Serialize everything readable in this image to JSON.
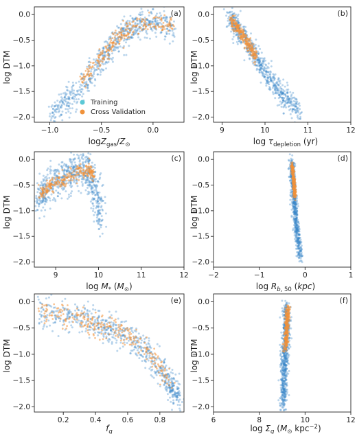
{
  "colors": {
    "training": "#3a86c8",
    "cross_validation": "#f0923a",
    "axis": "#222222",
    "background": "#ffffff"
  },
  "chart_data": [
    {
      "type": "scatter",
      "tag": "(a)",
      "xlabel": "logZ_gas/Z_⊙",
      "ylabel": "log DTM",
      "xlim": [
        -1.15,
        0.3
      ],
      "ylim": [
        -2.1,
        0.15
      ],
      "xticks": [
        -1.0,
        -0.5,
        0.0
      ],
      "xtick_labels": [
        "−1.0",
        "−0.5",
        "0.0"
      ],
      "yticks": [
        -2.0,
        -1.5,
        -1.0,
        -0.5,
        0.0
      ],
      "ytick_labels": [
        "−2.0",
        "−1.5",
        "−1.0",
        "−0.5",
        "0.0"
      ],
      "legend": {
        "placement": "lower-right",
        "entries": [
          "Training",
          "Cross Validation"
        ]
      },
      "series": [
        {
          "name": "Training",
          "trend": [
            [
              -0.98,
              -1.95
            ],
            [
              -0.8,
              -1.6
            ],
            [
              -0.6,
              -1.2
            ],
            [
              -0.45,
              -0.75
            ],
            [
              -0.3,
              -0.4
            ],
            [
              -0.15,
              -0.2
            ],
            [
              0.0,
              -0.15
            ],
            [
              0.2,
              -0.2
            ]
          ],
          "spread": 0.25
        },
        {
          "name": "Cross Validation",
          "trend": [
            [
              -0.7,
              -1.3
            ],
            [
              -0.5,
              -0.85
            ],
            [
              -0.35,
              -0.45
            ],
            [
              -0.2,
              -0.25
            ],
            [
              0.0,
              -0.18
            ],
            [
              0.2,
              -0.22
            ]
          ],
          "spread": 0.15
        }
      ]
    },
    {
      "type": "scatter",
      "tag": "(b)",
      "xlabel": "log τ_depletion (yr)",
      "ylabel": "log DTM",
      "xlim": [
        8.8,
        12.0
      ],
      "ylim": [
        -2.1,
        0.15
      ],
      "xticks": [
        9,
        10,
        11,
        12
      ],
      "xtick_labels": [
        "9",
        "10",
        "11",
        "12"
      ],
      "yticks": [
        -2.0,
        -1.5,
        -1.0,
        -0.5,
        0.0
      ],
      "ytick_labels": [
        "−2.0",
        "−1.5",
        "−1.0",
        "−0.5",
        "0.0"
      ],
      "series": [
        {
          "name": "Training",
          "trend": [
            [
              9.15,
              -0.05
            ],
            [
              9.4,
              -0.3
            ],
            [
              9.7,
              -0.7
            ],
            [
              10.0,
              -1.1
            ],
            [
              10.4,
              -1.55
            ],
            [
              10.8,
              -1.9
            ]
          ],
          "spread": 0.2
        },
        {
          "name": "Cross Validation",
          "trend": [
            [
              9.2,
              -0.1
            ],
            [
              9.4,
              -0.3
            ],
            [
              9.6,
              -0.55
            ],
            [
              9.8,
              -0.85
            ]
          ],
          "spread": 0.12
        }
      ]
    },
    {
      "type": "scatter",
      "tag": "(c)",
      "xlabel": "log M_* (M_⊙)",
      "ylabel": "log DTM",
      "xlim": [
        8.5,
        12.0
      ],
      "ylim": [
        -2.1,
        0.15
      ],
      "xticks": [
        9,
        10,
        11,
        12
      ],
      "xtick_labels": [
        "9",
        "10",
        "11",
        "12"
      ],
      "yticks": [
        -2.0,
        -1.5,
        -1.0,
        -0.5,
        0.0
      ],
      "ytick_labels": [
        "−2.0",
        "−1.5",
        "−1.0",
        "−0.5",
        "0.0"
      ],
      "series": [
        {
          "name": "Training",
          "trend": [
            [
              8.6,
              -0.8
            ],
            [
              8.8,
              -0.55
            ],
            [
              9.1,
              -0.4
            ],
            [
              9.4,
              -0.25
            ],
            [
              9.7,
              -0.15
            ],
            [
              9.95,
              -0.6
            ],
            [
              10.05,
              -1.3
            ]
          ],
          "spread": 0.3
        },
        {
          "name": "Cross Validation",
          "trend": [
            [
              8.6,
              -0.7
            ],
            [
              8.9,
              -0.5
            ],
            [
              9.2,
              -0.38
            ],
            [
              9.5,
              -0.25
            ],
            [
              9.75,
              -0.2
            ],
            [
              9.9,
              -0.3
            ]
          ],
          "spread": 0.12
        }
      ]
    },
    {
      "type": "scatter",
      "tag": "(d)",
      "xlabel": "log R_b,50 (kpc)",
      "ylabel": "log DTM",
      "xlim": [
        -2.0,
        1.0
      ],
      "ylim": [
        -2.1,
        0.15
      ],
      "xticks": [
        -2,
        -1,
        0,
        1
      ],
      "xtick_labels": [
        "−2",
        "−1",
        "0",
        "1"
      ],
      "yticks": [
        -2.0,
        -1.5,
        -1.0,
        -0.5,
        0.0
      ],
      "ytick_labels": [
        "−2.0",
        "−1.5",
        "−1.0",
        "−0.5",
        "0.0"
      ],
      "series": [
        {
          "name": "Training",
          "trend": [
            [
              -0.3,
              -0.05
            ],
            [
              -0.25,
              -0.6
            ],
            [
              -0.2,
              -1.2
            ],
            [
              -0.1,
              -1.9
            ]
          ],
          "spread": 0.14
        },
        {
          "name": "Cross Validation",
          "trend": [
            [
              -0.28,
              -0.1
            ],
            [
              -0.25,
              -0.4
            ],
            [
              -0.22,
              -0.7
            ]
          ],
          "spread": 0.08
        }
      ]
    },
    {
      "type": "scatter",
      "tag": "(e)",
      "xlabel": "f_g",
      "ylabel": "log DTM",
      "xlim": [
        0.02,
        0.95
      ],
      "ylim": [
        -2.1,
        0.15
      ],
      "xticks": [
        0.2,
        0.4,
        0.6,
        0.8
      ],
      "xtick_labels": [
        "0.2",
        "0.4",
        "0.6",
        "0.8"
      ],
      "yticks": [
        -2.0,
        -1.5,
        -1.0,
        -0.5,
        0.0
      ],
      "ytick_labels": [
        "−2.0",
        "−1.5",
        "−1.0",
        "−0.5",
        "0.0"
      ],
      "series": [
        {
          "name": "Training",
          "trend": [
            [
              0.05,
              -0.2
            ],
            [
              0.3,
              -0.3
            ],
            [
              0.5,
              -0.5
            ],
            [
              0.7,
              -0.9
            ],
            [
              0.85,
              -1.5
            ],
            [
              0.92,
              -1.85
            ]
          ],
          "spread": 0.25
        },
        {
          "name": "Cross Validation",
          "trend": [
            [
              0.05,
              -0.2
            ],
            [
              0.3,
              -0.3
            ],
            [
              0.5,
              -0.5
            ],
            [
              0.7,
              -0.85
            ],
            [
              0.88,
              -1.6
            ]
          ],
          "spread": 0.2
        }
      ]
    },
    {
      "type": "scatter",
      "tag": "(f)",
      "xlabel": "log Σ_g (M_⊙ kpc^−2)",
      "ylabel": "log DTM",
      "xlim": [
        6.0,
        12.0
      ],
      "ylim": [
        -2.1,
        0.15
      ],
      "xticks": [
        6,
        8,
        10,
        12
      ],
      "xtick_labels": [
        "6",
        "8",
        "10",
        "12"
      ],
      "yticks": [
        -2.0,
        -1.5,
        -1.0,
        -0.5,
        0.0
      ],
      "ytick_labels": [
        "−2.0",
        "−1.5",
        "−1.0",
        "−0.5",
        "0.0"
      ],
      "series": [
        {
          "name": "Training",
          "trend": [
            [
              9.2,
              -0.1
            ],
            [
              9.15,
              -0.7
            ],
            [
              9.1,
              -1.3
            ],
            [
              9.05,
              -1.95
            ]
          ],
          "spread": 0.2
        },
        {
          "name": "Cross Validation",
          "trend": [
            [
              9.25,
              -0.15
            ],
            [
              9.2,
              -0.5
            ],
            [
              9.15,
              -0.9
            ]
          ],
          "spread": 0.12
        }
      ]
    }
  ]
}
